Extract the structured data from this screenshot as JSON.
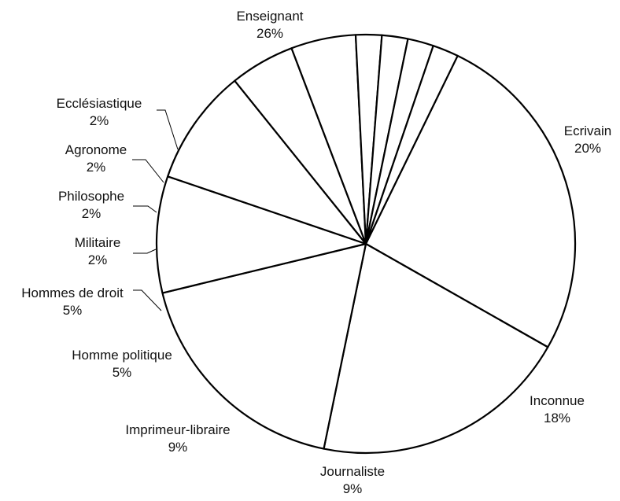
{
  "chart_data": {
    "type": "pie",
    "title": "",
    "slices": [
      {
        "name": "Enseignant",
        "value": 26,
        "label": "26%"
      },
      {
        "name": "Ecrivain",
        "value": 20,
        "label": "20%"
      },
      {
        "name": "Inconnue",
        "value": 18,
        "label": "18%"
      },
      {
        "name": "Journaliste",
        "value": 9,
        "label": "9%"
      },
      {
        "name": "Imprimeur-libraire",
        "value": 9,
        "label": "9%"
      },
      {
        "name": "Homme politique",
        "value": 5,
        "label": "5%"
      },
      {
        "name": "Hommes de droit",
        "value": 5,
        "label": "5%"
      },
      {
        "name": "Militaire",
        "value": 2,
        "label": "2%"
      },
      {
        "name": "Philosophe",
        "value": 2,
        "label": "2%"
      },
      {
        "name": "Agronome",
        "value": 2,
        "label": "2%"
      },
      {
        "name": "Ecclésiastique",
        "value": 2,
        "label": "2%"
      }
    ],
    "colors": {
      "fill": "#ffffff",
      "stroke": "#000000"
    },
    "legend": "none"
  }
}
